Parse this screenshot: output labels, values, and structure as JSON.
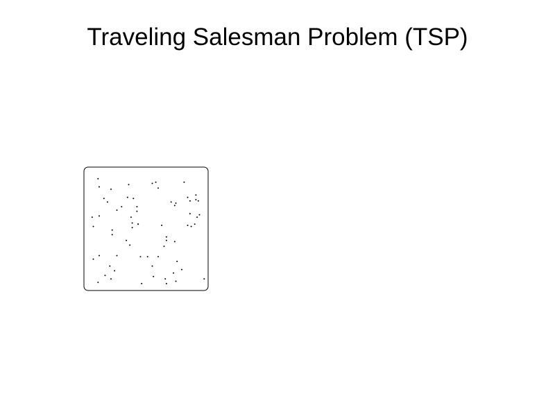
{
  "title": "Traveling Salesman Problem (TSP)",
  "board": {
    "border_color": "#000000",
    "background": "#ffffff",
    "city_color": "#000000",
    "cities": [
      [
        0.09,
        0.07
      ],
      [
        0.1,
        0.14
      ],
      [
        0.2,
        0.16
      ],
      [
        0.14,
        0.24
      ],
      [
        0.17,
        0.27
      ],
      [
        0.35,
        0.12
      ],
      [
        0.55,
        0.11
      ],
      [
        0.58,
        0.1
      ],
      [
        0.6,
        0.15
      ],
      [
        0.71,
        0.27
      ],
      [
        0.75,
        0.28
      ],
      [
        0.74,
        0.3
      ],
      [
        0.82,
        0.1
      ],
      [
        0.85,
        0.23
      ],
      [
        0.87,
        0.26
      ],
      [
        0.92,
        0.21
      ],
      [
        0.92,
        0.25
      ],
      [
        0.94,
        0.26
      ],
      [
        0.34,
        0.23
      ],
      [
        0.39,
        0.24
      ],
      [
        0.29,
        0.31
      ],
      [
        0.25,
        0.34
      ],
      [
        0.42,
        0.31
      ],
      [
        0.42,
        0.35
      ],
      [
        0.37,
        0.4
      ],
      [
        0.38,
        0.45
      ],
      [
        0.43,
        0.46
      ],
      [
        0.04,
        0.4
      ],
      [
        0.1,
        0.39
      ],
      [
        0.05,
        0.48
      ],
      [
        0.21,
        0.51
      ],
      [
        0.21,
        0.55
      ],
      [
        0.38,
        0.49
      ],
      [
        0.43,
        0.46
      ],
      [
        0.63,
        0.47
      ],
      [
        0.67,
        0.57
      ],
      [
        0.67,
        0.6
      ],
      [
        0.65,
        0.65
      ],
      [
        0.74,
        0.61
      ],
      [
        0.85,
        0.47
      ],
      [
        0.88,
        0.48
      ],
      [
        0.91,
        0.46
      ],
      [
        0.87,
        0.37
      ],
      [
        0.93,
        0.4
      ],
      [
        0.95,
        0.38
      ],
      [
        0.33,
        0.6
      ],
      [
        0.36,
        0.64
      ],
      [
        0.05,
        0.76
      ],
      [
        0.1,
        0.73
      ],
      [
        0.25,
        0.73
      ],
      [
        0.19,
        0.82
      ],
      [
        0.23,
        0.86
      ],
      [
        0.15,
        0.9
      ],
      [
        0.2,
        0.93
      ],
      [
        0.09,
        0.96
      ],
      [
        0.45,
        0.74
      ],
      [
        0.51,
        0.74
      ],
      [
        0.6,
        0.74
      ],
      [
        0.55,
        0.82
      ],
      [
        0.56,
        0.91
      ],
      [
        0.46,
        0.97
      ],
      [
        0.66,
        0.93
      ],
      [
        0.67,
        0.97
      ],
      [
        0.76,
        0.78
      ],
      [
        0.73,
        0.88
      ],
      [
        0.8,
        0.85
      ],
      [
        0.75,
        0.95
      ],
      [
        0.99,
        0.93
      ]
    ]
  }
}
